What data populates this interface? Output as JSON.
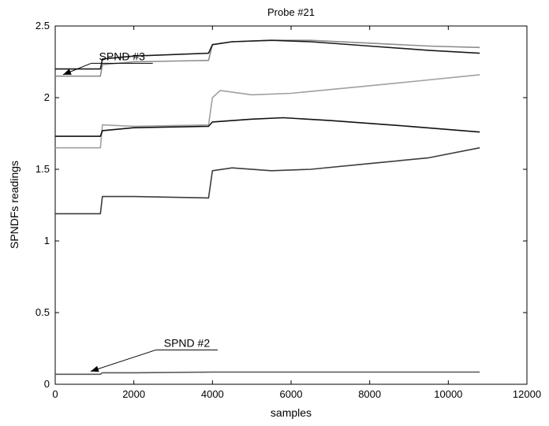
{
  "chart_data": {
    "type": "line",
    "title": "Probe #21",
    "xlabel": "samples",
    "ylabel": "SPNDFs readings",
    "xlim": [
      0,
      12000
    ],
    "ylim": [
      0,
      2.5
    ],
    "xticks": [
      0,
      2000,
      4000,
      6000,
      8000,
      10000,
      12000
    ],
    "yticks": [
      0,
      0.5,
      1,
      1.5,
      2,
      2.5
    ],
    "grid": false,
    "series": [
      {
        "color": "#8c8c8c",
        "x": [
          0,
          1150,
          1200,
          2000,
          3900,
          4000,
          4500,
          5500,
          6500,
          8000,
          9500,
          10800
        ],
        "y": [
          2.15,
          2.15,
          2.23,
          2.25,
          2.26,
          2.37,
          2.39,
          2.4,
          2.4,
          2.38,
          2.36,
          2.35
        ]
      },
      {
        "color": "#1a1a1a",
        "x": [
          0,
          1150,
          1200,
          2000,
          3900,
          4000,
          4500,
          5500,
          6500,
          8000,
          9500,
          10800
        ],
        "y": [
          2.2,
          2.2,
          2.27,
          2.29,
          2.31,
          2.37,
          2.39,
          2.4,
          2.39,
          2.36,
          2.33,
          2.31
        ]
      },
      {
        "color": "#a0a0a0",
        "x": [
          0,
          1150,
          1200,
          2000,
          3900,
          4000,
          4200,
          5000,
          6000,
          7500,
          9000,
          10800
        ],
        "y": [
          1.65,
          1.65,
          1.81,
          1.8,
          1.81,
          2.0,
          2.05,
          2.02,
          2.03,
          2.07,
          2.11,
          2.16
        ]
      },
      {
        "color": "#111111",
        "x": [
          0,
          1150,
          1200,
          2000,
          3900,
          4000,
          5000,
          5800,
          7000,
          9000,
          10800
        ],
        "y": [
          1.73,
          1.73,
          1.77,
          1.79,
          1.8,
          1.83,
          1.85,
          1.86,
          1.84,
          1.8,
          1.76
        ]
      },
      {
        "color": "#3c3c3c",
        "x": [
          0,
          1150,
          1200,
          2000,
          3900,
          4000,
          4500,
          5500,
          6500,
          8000,
          9500,
          10800
        ],
        "y": [
          1.19,
          1.19,
          1.31,
          1.31,
          1.3,
          1.49,
          1.51,
          1.49,
          1.5,
          1.54,
          1.58,
          1.65
        ]
      },
      {
        "color": "#555555",
        "x": [
          0,
          1150,
          1200,
          2000,
          4000,
          6000,
          8000,
          10000,
          10800
        ],
        "y": [
          0.07,
          0.07,
          0.08,
          0.08,
          0.085,
          0.085,
          0.085,
          0.085,
          0.085
        ]
      }
    ],
    "annotations": [
      {
        "text": "SPND #3",
        "label_x": 1700,
        "label_y": 2.24,
        "arrow_x": 200,
        "arrow_y": 2.16
      },
      {
        "text": "SPND #2",
        "label_x": 3350,
        "label_y": 0.24,
        "arrow_x": 900,
        "arrow_y": 0.09
      }
    ]
  }
}
